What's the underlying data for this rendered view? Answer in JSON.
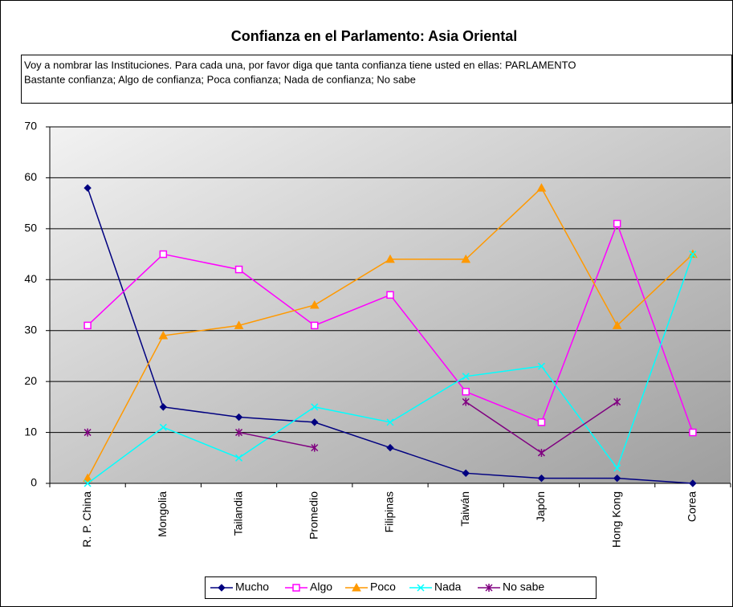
{
  "chart_data": {
    "type": "line",
    "title": "Confianza en el Parlamento: Asia Oriental",
    "subtitle": [
      "Voy a nombrar las Instituciones. Para cada una, por favor diga que tanta confianza tiene usted en ellas: PARLAMENTO",
      "Bastante confianza; Algo de confianza; Poca confianza; Nada de confianza; No sabe"
    ],
    "categories": [
      "R. P. China",
      "Mongolia",
      "Tailandia",
      "Promedio",
      "Filipinas",
      "Taiwán",
      "Japón",
      "Hong Kong",
      "Corea"
    ],
    "series": [
      {
        "name": "Mucho",
        "color": "#000080",
        "marker": "diamond",
        "values": [
          58,
          15,
          13,
          12,
          7,
          2,
          1,
          1,
          0
        ]
      },
      {
        "name": "Algo",
        "color": "#ff00ff",
        "marker": "square",
        "values": [
          31,
          45,
          42,
          31,
          37,
          18,
          12,
          51,
          10
        ]
      },
      {
        "name": "Poco",
        "color": "#ff9900",
        "marker": "triangle",
        "values": [
          1,
          29,
          31,
          35,
          44,
          44,
          58,
          31,
          45
        ]
      },
      {
        "name": "Nada",
        "color": "#00ffff",
        "marker": "x",
        "values": [
          0,
          11,
          5,
          15,
          12,
          21,
          23,
          3,
          45
        ]
      },
      {
        "name": "No sabe",
        "color": "#800080",
        "marker": "star",
        "values": [
          10,
          null,
          10,
          7,
          null,
          16,
          6,
          16,
          null
        ]
      }
    ],
    "ylim": [
      0,
      70
    ],
    "yticks": [
      0,
      10,
      20,
      30,
      40,
      50,
      60,
      70
    ],
    "grid": true,
    "legend": "bottom"
  }
}
